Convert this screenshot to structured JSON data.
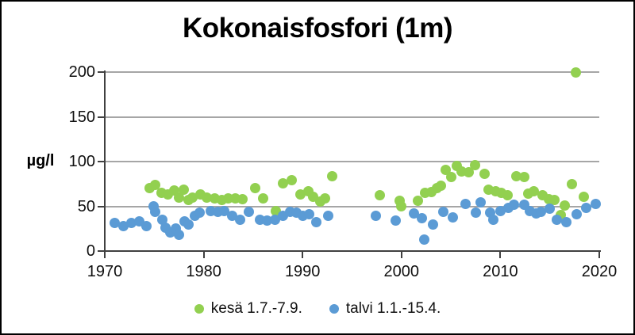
{
  "chart_data": {
    "type": "scatter",
    "title": "Kokonaisfosfori (1m)",
    "ylabel": "µg/l",
    "xlim": [
      1970,
      2020
    ],
    "ylim": [
      0,
      200
    ],
    "xticks": [
      1970,
      1980,
      1990,
      2000,
      2010,
      2020
    ],
    "yticks": [
      0,
      50,
      100,
      150,
      200
    ],
    "grid": "horizontal-only",
    "legend_position": "bottom-center",
    "colors": {
      "axis": "#404040",
      "gridline": "#a6a6a6",
      "title": "#000000",
      "background": "#ffffff"
    },
    "series": [
      {
        "name": "kesä 1.7.-7.9.",
        "color": "#92d050",
        "marker": "circle",
        "points": [
          [
            1974.5,
            70
          ],
          [
            1975.1,
            74
          ],
          [
            1975.7,
            65
          ],
          [
            1976.4,
            63
          ],
          [
            1977.0,
            68
          ],
          [
            1977.5,
            60
          ],
          [
            1978.0,
            69
          ],
          [
            1978.5,
            57
          ],
          [
            1978.9,
            60
          ],
          [
            1979.7,
            63
          ],
          [
            1980.3,
            60
          ],
          [
            1981.1,
            59
          ],
          [
            1981.8,
            57
          ],
          [
            1982.5,
            59
          ],
          [
            1983.2,
            59
          ],
          [
            1983.9,
            58
          ],
          [
            1985.2,
            70
          ],
          [
            1986.0,
            59
          ],
          [
            1987.3,
            45
          ],
          [
            1988.0,
            76
          ],
          [
            1988.9,
            79
          ],
          [
            1989.8,
            63
          ],
          [
            1990.6,
            67
          ],
          [
            1991.1,
            61
          ],
          [
            1991.8,
            55
          ],
          [
            1992.3,
            59
          ],
          [
            1993.0,
            84
          ],
          [
            1997.8,
            62
          ],
          [
            1999.8,
            56
          ],
          [
            2000.0,
            50
          ],
          [
            2001.7,
            56
          ],
          [
            2002.4,
            65
          ],
          [
            2003.0,
            66
          ],
          [
            2003.6,
            70
          ],
          [
            2004.0,
            73
          ],
          [
            2004.5,
            91
          ],
          [
            2005.0,
            83
          ],
          [
            2005.6,
            95
          ],
          [
            2006.1,
            89
          ],
          [
            2006.8,
            88
          ],
          [
            2007.4,
            96
          ],
          [
            2008.4,
            86
          ],
          [
            2008.8,
            69
          ],
          [
            2009.5,
            67
          ],
          [
            2010.1,
            65
          ],
          [
            2010.7,
            62
          ],
          [
            2011.6,
            84
          ],
          [
            2012.4,
            83
          ],
          [
            2012.8,
            64
          ],
          [
            2013.4,
            67
          ],
          [
            2014.3,
            62
          ],
          [
            2014.9,
            58
          ],
          [
            2015.5,
            57
          ],
          [
            2016.1,
            40
          ],
          [
            2016.5,
            51
          ],
          [
            2017.2,
            75
          ],
          [
            2017.6,
            200
          ],
          [
            2018.4,
            61
          ]
        ]
      },
      {
        "name": "talvi 1.1.-15.4.",
        "color": "#5b9bd5",
        "marker": "circle",
        "points": [
          [
            1971.0,
            31
          ],
          [
            1971.9,
            28
          ],
          [
            1972.7,
            31
          ],
          [
            1973.5,
            33
          ],
          [
            1974.2,
            28
          ],
          [
            1974.9,
            50
          ],
          [
            1975.1,
            44
          ],
          [
            1975.8,
            35
          ],
          [
            1976.1,
            26
          ],
          [
            1976.6,
            21
          ],
          [
            1977.2,
            25
          ],
          [
            1977.5,
            18
          ],
          [
            1978.1,
            33
          ],
          [
            1978.5,
            30
          ],
          [
            1979.1,
            39
          ],
          [
            1979.6,
            43
          ],
          [
            1980.7,
            45
          ],
          [
            1981.4,
            44
          ],
          [
            1982.1,
            45
          ],
          [
            1982.9,
            39
          ],
          [
            1983.7,
            35
          ],
          [
            1984.6,
            44
          ],
          [
            1985.7,
            35
          ],
          [
            1986.4,
            34
          ],
          [
            1987.2,
            35
          ],
          [
            1988.0,
            39
          ],
          [
            1988.7,
            44
          ],
          [
            1989.4,
            43
          ],
          [
            1990.0,
            39
          ],
          [
            1990.7,
            41
          ],
          [
            1991.4,
            32
          ],
          [
            1992.6,
            39
          ],
          [
            1997.4,
            39
          ],
          [
            1999.4,
            34
          ],
          [
            2001.3,
            42
          ],
          [
            2002.1,
            37
          ],
          [
            2002.3,
            13
          ],
          [
            2003.2,
            30
          ],
          [
            2004.2,
            44
          ],
          [
            2005.2,
            38
          ],
          [
            2006.5,
            53
          ],
          [
            2007.5,
            43
          ],
          [
            2008.0,
            54
          ],
          [
            2009.0,
            43
          ],
          [
            2009.3,
            35
          ],
          [
            2010.0,
            45
          ],
          [
            2010.8,
            48
          ],
          [
            2011.4,
            52
          ],
          [
            2012.4,
            52
          ],
          [
            2013.0,
            45
          ],
          [
            2013.6,
            42
          ],
          [
            2014.1,
            44
          ],
          [
            2015.0,
            47
          ],
          [
            2015.7,
            35
          ],
          [
            2016.7,
            32
          ],
          [
            2017.7,
            41
          ],
          [
            2018.7,
            48
          ],
          [
            2019.6,
            53
          ]
        ]
      }
    ]
  }
}
